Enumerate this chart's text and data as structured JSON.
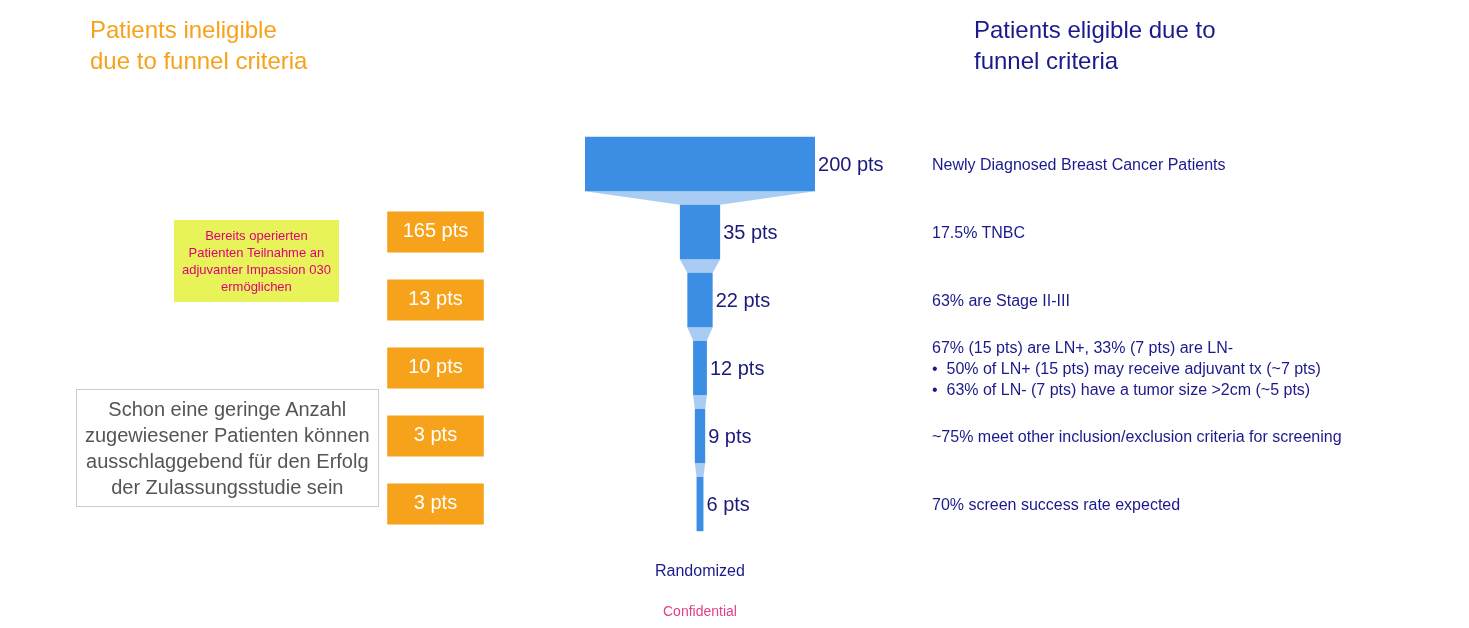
{
  "chart_data": {
    "type": "other",
    "categories": [
      "Newly Diagnosed Breast Cancer Patients",
      "17.5% TNBC",
      "63% are Stage II-III",
      "67% (15 pts) are LN+, 33% (7 pts) are LN-\n•  50% of LN+ (15 pts) may receive adjuvant tx (~7 pts)\n•  63% of LN- (7 pts) have a tumor size >2cm (~5 pts)",
      "~75% meet other inclusion/exclusion criteria for screening",
      "70% screen success rate expected"
    ],
    "series": [
      {
        "color": "#3b8ee4",
        "values": [
          200,
          35,
          22,
          12,
          9,
          6
        ],
        "value_labels": [
          "200 pts",
          "35 pts",
          "22 pts",
          "12 pts",
          "9 pts",
          "6 pts"
        ]
      },
      {
        "color": "#f7a21b",
        "values": [
          null,
          165,
          13,
          10,
          3,
          3
        ],
        "value_labels": [
          null,
          "165 pts",
          "13 pts",
          "10 pts",
          "3 pts",
          "3 pts"
        ]
      }
    ],
    "annotations": [
      "Patients ineligible\ndue to funnel criteria",
      "Patients eligible due to\nfunnel criteria",
      "Bereits operierten\nPatienten Teilnahme an\nadjuvanter Impassion 030\nermöglichen",
      "Schon eine geringe Anzahl\nzugewiesener Patienten können\nausschlaggebend für den Erfolg\nder Zulassungsstudie sein",
      "Randomized",
      "Confidential"
    ]
  }
}
